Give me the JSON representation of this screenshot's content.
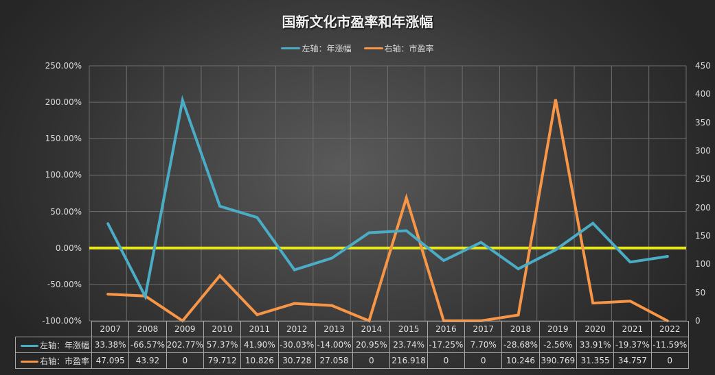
{
  "title": "国新文化市盈率和年涨幅",
  "legend": [
    {
      "label": "左轴：年涨幅",
      "color": "#4bacc6"
    },
    {
      "label": "右轴：市盈率",
      "color": "#f79646"
    }
  ],
  "axes": {
    "left_ticks": [
      "250.00%",
      "200.00%",
      "150.00%",
      "100.00%",
      "50.00%",
      "0.00%",
      "-50.00%",
      "-100.00%"
    ],
    "right_ticks": [
      "450",
      "400",
      "350",
      "300",
      "250",
      "200",
      "150",
      "100",
      "50",
      "0"
    ]
  },
  "table": {
    "years": [
      "2007",
      "2008",
      "2009",
      "2010",
      "2011",
      "2012",
      "2013",
      "2014",
      "2015",
      "2016",
      "2017",
      "2018",
      "2019",
      "2020",
      "2021",
      "2022"
    ],
    "rows": [
      {
        "label": "左轴：年涨幅",
        "color": "#4bacc6",
        "cells": [
          "33.38%",
          "-66.57%",
          "202.77%",
          "57.37%",
          "41.90%",
          "-30.03%",
          "-14.00%",
          "20.95%",
          "23.74%",
          "-17.25%",
          "7.70%",
          "-28.68%",
          "-2.56%",
          "33.91%",
          "-19.37%",
          "-11.59%"
        ]
      },
      {
        "label": "右轴：市盈率",
        "color": "#f79646",
        "cells": [
          "47.095",
          "43.92",
          "0",
          "79.712",
          "10.826",
          "30.728",
          "27.058",
          "0",
          "216.918",
          "0",
          "0",
          "10.246",
          "390.769",
          "31.355",
          "34.757",
          "0"
        ]
      }
    ]
  },
  "colors": {
    "growth_line": "#4bacc6",
    "pe_line": "#f79646",
    "zero_line": "#e6e619",
    "grid": "#6e6e6e"
  },
  "chart_data": {
    "type": "line",
    "title": "国新文化市盈率和年涨幅",
    "categories": [
      "2007",
      "2008",
      "2009",
      "2010",
      "2011",
      "2012",
      "2013",
      "2014",
      "2015",
      "2016",
      "2017",
      "2018",
      "2019",
      "2020",
      "2021",
      "2022"
    ],
    "series": [
      {
        "name": "左轴：年涨幅",
        "axis": "left",
        "unit": "%",
        "values": [
          33.38,
          -66.57,
          202.77,
          57.37,
          41.9,
          -30.03,
          -14.0,
          20.95,
          23.74,
          -17.25,
          7.7,
          -28.68,
          -2.56,
          33.91,
          -19.37,
          -11.59
        ]
      },
      {
        "name": "右轴：市盈率",
        "axis": "right",
        "values": [
          47.095,
          43.92,
          0,
          79.712,
          10.826,
          30.728,
          27.058,
          0,
          216.918,
          0,
          0,
          10.246,
          390.769,
          31.355,
          34.757,
          0
        ]
      }
    ],
    "ylim_left": [
      -100,
      250
    ],
    "ylim_right": [
      0,
      450
    ],
    "left_tick_step": 50,
    "right_tick_step": 50,
    "reference_line": {
      "axis": "left",
      "value": 0,
      "color": "#e6e619"
    },
    "grid": true,
    "legend_position": "top",
    "data_table": true
  }
}
